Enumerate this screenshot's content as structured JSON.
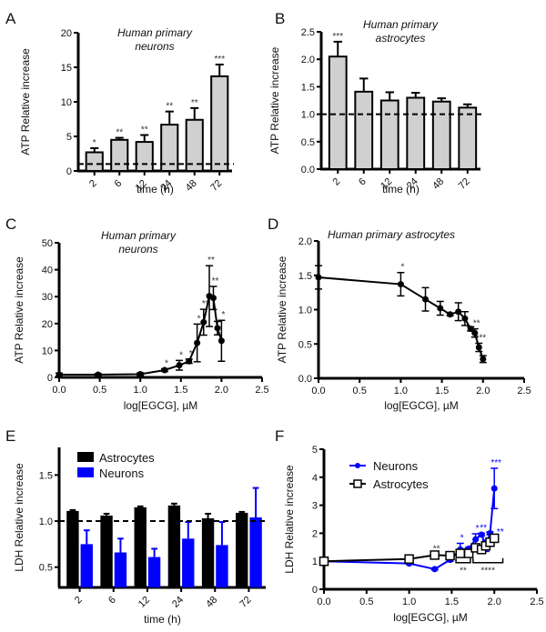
{
  "chart_data": [
    {
      "panel": "A",
      "type": "bar",
      "title": "Human primary neurons",
      "title_lines": [
        "Human primary",
        "neurons"
      ],
      "xlabel": "time (h)",
      "ylabel": "ATP Relative increase",
      "categories": [
        "2",
        "6",
        "12",
        "24",
        "48",
        "72"
      ],
      "values": [
        2.7,
        4.5,
        4.2,
        6.7,
        7.4,
        13.7
      ],
      "errors": [
        0.6,
        0.3,
        1.0,
        1.9,
        1.7,
        1.7
      ],
      "significance": [
        "*",
        "**",
        "**",
        "**",
        "**",
        "***"
      ],
      "yticks": [
        0,
        5,
        10,
        15,
        20
      ],
      "ylim": [
        0,
        20
      ],
      "baseline": 1,
      "bar_color": "#d0d0d0"
    },
    {
      "panel": "B",
      "type": "bar",
      "title": "Human primary astrocytes",
      "title_lines": [
        "Human primary",
        "astrocytes"
      ],
      "xlabel": "time (h)",
      "ylabel": "ATP Relative increase",
      "categories": [
        "2",
        "6",
        "12",
        "24",
        "48",
        "72"
      ],
      "values": [
        2.05,
        1.41,
        1.25,
        1.3,
        1.23,
        1.12
      ],
      "errors": [
        0.27,
        0.24,
        0.15,
        0.09,
        0.06,
        0.06
      ],
      "significance": [
        "***",
        "",
        "",
        "",
        "",
        ""
      ],
      "yticks": [
        0.0,
        0.5,
        1.0,
        1.5,
        2.0,
        2.5
      ],
      "ytick_labels": [
        "0.0",
        "0.5",
        "1.0",
        "1.5",
        "2.0",
        "2.5"
      ],
      "ylim": [
        0,
        2.5
      ],
      "baseline": 1,
      "bar_color": "#d0d0d0"
    },
    {
      "panel": "C",
      "type": "line",
      "title": "Human primary neurons",
      "title_lines": [
        "Human primary",
        "neurons"
      ],
      "xlabel": "log[EGCG], µM",
      "ylabel": "ATP Relative increase",
      "x": [
        0.0,
        0.48,
        1.0,
        1.3,
        1.48,
        1.6,
        1.7,
        1.78,
        1.85,
        1.9,
        1.95,
        2.0
      ],
      "y": [
        1.0,
        1.0,
        1.2,
        2.7,
        4.5,
        6.0,
        12.8,
        20.5,
        30.2,
        29.5,
        18.3,
        13.6
      ],
      "errors": [
        0.6,
        0.4,
        0.5,
        0.5,
        1.8,
        0.8,
        7.0,
        4.8,
        11.3,
        4.3,
        2.5,
        7.6
      ],
      "significance": [
        "",
        "",
        "",
        "*",
        "*",
        "*",
        "*",
        "**",
        "**",
        "**",
        "",
        "*"
      ],
      "xticks": [
        0.0,
        0.5,
        1.0,
        1.5,
        2.0,
        2.5
      ],
      "xtick_labels": [
        "0.0",
        "0.5",
        "1.0",
        "1.5",
        "2.0",
        "2.5"
      ],
      "yticks": [
        0,
        10,
        20,
        30,
        40,
        50
      ],
      "xlim": [
        0,
        2.5
      ],
      "ylim": [
        0,
        50
      ],
      "color": "#000000"
    },
    {
      "panel": "D",
      "type": "line",
      "title": "Human primary astrocytes",
      "title_lines": [
        "Human primary astrocytes"
      ],
      "xlabel": "log[EGCG], µM",
      "ylabel": "ATP Relative increase",
      "x": [
        0.0,
        1.0,
        1.3,
        1.48,
        1.6,
        1.7,
        1.78,
        1.85,
        1.9,
        1.95,
        2.0
      ],
      "y": [
        1.47,
        1.37,
        1.15,
        1.02,
        0.93,
        0.97,
        0.87,
        0.72,
        0.66,
        0.45,
        0.28
      ],
      "errors": [
        0.17,
        0.17,
        0.17,
        0.1,
        0.02,
        0.13,
        0.1,
        0.03,
        0.06,
        0.06,
        0.05
      ],
      "significance": [
        "",
        "*",
        "",
        "",
        "",
        "",
        "",
        "",
        "**",
        "***",
        ""
      ],
      "xticks": [
        0.0,
        0.5,
        1.0,
        1.5,
        2.0,
        2.5
      ],
      "xtick_labels": [
        "0.0",
        "0.5",
        "1.0",
        "1.5",
        "2.0",
        "2.5"
      ],
      "yticks": [
        0.0,
        0.5,
        1.0,
        1.5,
        2.0
      ],
      "ytick_labels": [
        "0.0",
        "0.5",
        "1.0",
        "1.5",
        "2.0"
      ],
      "xlim": [
        0,
        2.5
      ],
      "ylim": [
        0,
        2.0
      ],
      "color": "#000000"
    },
    {
      "panel": "E",
      "type": "bar",
      "title": "",
      "xlabel": "time (h)",
      "ylabel": "LDH Relative increase",
      "categories": [
        "2",
        "6",
        "12",
        "24",
        "48",
        "72"
      ],
      "series": [
        {
          "name": "Astrocytes",
          "color": "#000000",
          "values": [
            1.11,
            1.06,
            1.15,
            1.17,
            1.03,
            1.09
          ],
          "errors": [
            0.01,
            0.02,
            0.01,
            0.02,
            0.05,
            0.01
          ]
        },
        {
          "name": "Neurons",
          "color": "#0000ff",
          "values": [
            0.75,
            0.66,
            0.61,
            0.81,
            0.74,
            1.04
          ],
          "errors": [
            0.15,
            0.15,
            0.09,
            0.18,
            0.25,
            0.32
          ]
        }
      ],
      "yticks": [
        0.5,
        1.0,
        1.5
      ],
      "ytick_labels": [
        "0.5",
        "1.0",
        "1.5"
      ],
      "ylim": [
        0.28,
        1.8
      ],
      "baseline": 1,
      "legend": "top-left"
    },
    {
      "panel": "F",
      "type": "line",
      "title": "",
      "xlabel": "log[EGCG], µM",
      "ylabel": "LDH Relative increase",
      "series": [
        {
          "name": "Neurons",
          "color": "#0000ff",
          "marker": "dot",
          "x": [
            0.0,
            1.0,
            1.3,
            1.48,
            1.6,
            1.7,
            1.78,
            1.85,
            1.9,
            1.95,
            2.0
          ],
          "y": [
            1.0,
            0.92,
            0.72,
            1.05,
            1.42,
            1.45,
            1.78,
            1.95,
            1.55,
            2.0,
            3.6
          ],
          "errors": [
            0.03,
            0.03,
            0.03,
            0.05,
            0.22,
            0.05,
            0.2,
            0.05,
            0.2,
            0.05,
            0.72
          ],
          "significance": [
            "",
            "",
            "",
            "",
            "*",
            "",
            "*",
            "**",
            "*",
            "",
            "***"
          ]
        },
        {
          "name": "Astrocytes",
          "color": "#000000",
          "marker": "open-square",
          "x": [
            0.0,
            1.0,
            1.3,
            1.48,
            1.6,
            1.7,
            1.78,
            1.85,
            1.9,
            1.95,
            2.0
          ],
          "y": [
            1.0,
            1.08,
            1.22,
            1.2,
            1.28,
            1.28,
            1.48,
            1.42,
            1.55,
            1.68,
            1.82
          ],
          "errors": [
            0.03,
            0.03,
            0.03,
            0.03,
            0.03,
            0.03,
            0.05,
            0.05,
            0.05,
            0.05,
            0.05
          ],
          "significance": [
            "",
            "",
            "**",
            "",
            "",
            "",
            "",
            "",
            "",
            "",
            ""
          ]
        }
      ],
      "annotations": [
        {
          "text": "**",
          "x": 2.07,
          "y": 1.95,
          "color": "#0000ff"
        },
        {
          "text": "**",
          "bracket_x": [
            1.55,
            1.72
          ],
          "bracket_y": 0.95
        },
        {
          "text": "****",
          "bracket_x": [
            1.75,
            2.1
          ],
          "bracket_y": 0.95
        }
      ],
      "xticks": [
        0.0,
        0.5,
        1.0,
        1.5,
        2.0,
        2.5
      ],
      "xtick_labels": [
        "0.0",
        "0.5",
        "1.0",
        "1.5",
        "2.0",
        "2.5"
      ],
      "yticks": [
        0,
        1,
        2,
        3,
        4,
        5
      ],
      "xlim": [
        0,
        2.5
      ],
      "ylim": [
        0,
        5
      ],
      "legend": "top-left"
    }
  ]
}
